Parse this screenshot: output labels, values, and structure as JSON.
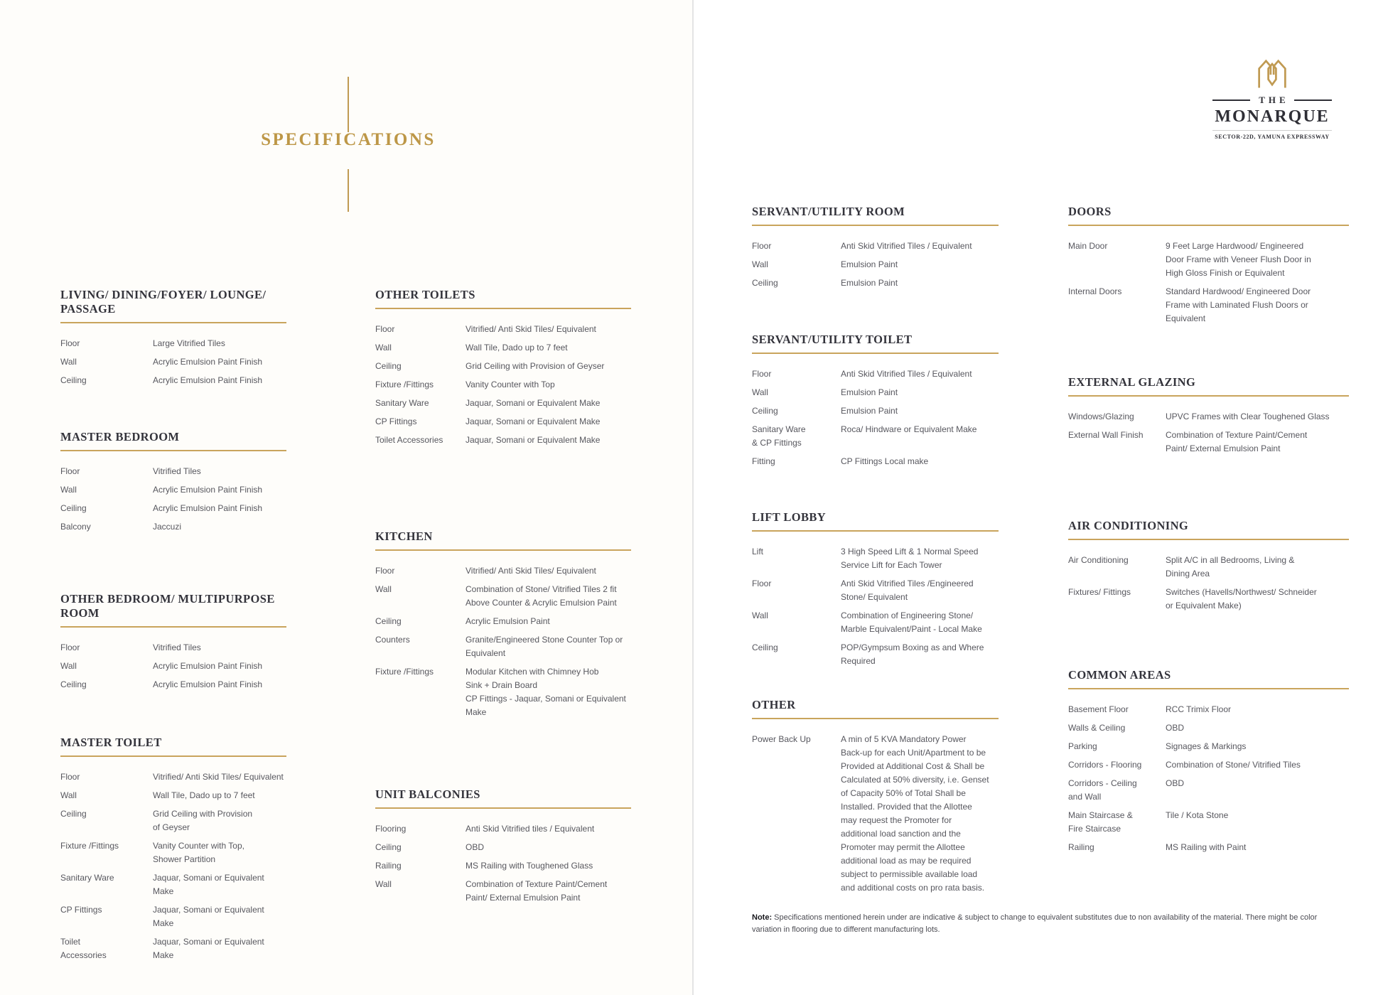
{
  "page": {
    "title": "SPECIFICATIONS",
    "note_label": "Note:",
    "note_text": " Specifications mentioned herein under are indicative & subject to change to equivalent substitutes due to non availability of the material. There might be color variation in flooring due to different manufacturing lots."
  },
  "logo": {
    "monogram_icon": "monarque-monogram",
    "the": "THE",
    "name": "MONARQUE",
    "tagline": "SECTOR-22D, YAMUNA EXPRESSWAY"
  },
  "colors": {
    "gold": "#c09a52",
    "gold_underline": "#c9a45c",
    "heading_dark": "#33333b",
    "body_gray": "#57575e"
  },
  "columns": [
    {
      "sections": [
        {
          "title": "LIVING/ DINING/FOYER/ LOUNGE/ PASSAGE",
          "rows": [
            {
              "label": "Floor",
              "value": "Large Vitrified Tiles"
            },
            {
              "label": "Wall",
              "value": "Acrylic Emulsion Paint Finish"
            },
            {
              "label": "Ceiling",
              "value": "Acrylic Emulsion Paint Finish"
            }
          ]
        },
        {
          "title": "MASTER BEDROOM",
          "rows": [
            {
              "label": "Floor",
              "value": "Vitrified Tiles"
            },
            {
              "label": "Wall",
              "value": "Acrylic Emulsion Paint Finish"
            },
            {
              "label": "Ceiling",
              "value": "Acrylic Emulsion Paint Finish"
            },
            {
              "label": "Balcony",
              "value": "Jaccuzi"
            }
          ]
        },
        {
          "title": "OTHER BEDROOM/ MULTIPURPOSE ROOM",
          "rows": [
            {
              "label": "Floor",
              "value": "Vitrified Tiles"
            },
            {
              "label": "Wall",
              "value": "Acrylic Emulsion Paint Finish"
            },
            {
              "label": "Ceiling",
              "value": "Acrylic Emulsion Paint Finish"
            }
          ]
        },
        {
          "title": "MASTER TOILET",
          "rows": [
            {
              "label": "Floor",
              "value": "Vitrified/ Anti Skid Tiles/ Equivalent"
            },
            {
              "label": "Wall",
              "value": "Wall Tile, Dado up to 7 feet"
            },
            {
              "label": "Ceiling",
              "value": "Grid Ceiling with Provision\nof Geyser"
            },
            {
              "label": "Fixture /Fittings",
              "value": "Vanity Counter with Top,\nShower Partition"
            },
            {
              "label": "Sanitary Ware",
              "value": "Jaquar, Somani or Equivalent Make"
            },
            {
              "label": "CP Fittings",
              "value": "Jaquar, Somani or Equivalent Make"
            },
            {
              "label": "Toilet\nAccessories",
              "value": "Jaquar, Somani or Equivalent Make"
            }
          ]
        }
      ]
    },
    {
      "sections": [
        {
          "title": "OTHER TOILETS",
          "rows": [
            {
              "label": "Floor",
              "value": "Vitrified/ Anti Skid Tiles/ Equivalent"
            },
            {
              "label": "Wall",
              "value": "Wall Tile, Dado up to 7 feet"
            },
            {
              "label": "Ceiling",
              "value": "Grid Ceiling with Provision of Geyser"
            },
            {
              "label": "Fixture /Fittings",
              "value": "Vanity Counter with Top"
            },
            {
              "label": "Sanitary Ware",
              "value": "Jaquar, Somani or Equivalent Make"
            },
            {
              "label": "CP Fittings",
              "value": "Jaquar, Somani or Equivalent Make"
            },
            {
              "label": "Toilet Accessories",
              "value": "Jaquar, Somani or Equivalent Make"
            }
          ]
        },
        {
          "title": "KITCHEN",
          "rows": [
            {
              "label": "Floor",
              "value": "Vitrified/ Anti Skid Tiles/ Equivalent"
            },
            {
              "label": "Wall",
              "value": "Combination of Stone/ Vitrified Tiles 2 fit\nAbove Counter & Acrylic Emulsion Paint"
            },
            {
              "label": "Ceiling",
              "value": "Acrylic Emulsion Paint"
            },
            {
              "label": "Counters",
              "value": "Granite/Engineered Stone Counter Top or\nEquivalent"
            },
            {
              "label": "Fixture /Fittings",
              "value": "Modular Kitchen with Chimney Hob\nSink + Drain Board\nCP Fittings - Jaquar, Somani or Equivalent\nMake"
            }
          ]
        },
        {
          "title": "UNIT BALCONIES",
          "rows": [
            {
              "label": "Flooring",
              "value": "Anti Skid Vitrified tiles / Equivalent"
            },
            {
              "label": "Ceiling",
              "value": "OBD"
            },
            {
              "label": "Railing",
              "value": "MS Railing with Toughened Glass"
            },
            {
              "label": "Wall",
              "value": "Combination of Texture Paint/Cement\nPaint/ External Emulsion Paint"
            }
          ]
        }
      ]
    },
    {
      "sections": [
        {
          "title": "SERVANT/UTILITY ROOM",
          "rows": [
            {
              "label": "Floor",
              "value": "Anti Skid Vitrified Tiles / Equivalent"
            },
            {
              "label": "Wall",
              "value": "Emulsion Paint"
            },
            {
              "label": "Ceiling",
              "value": "Emulsion Paint"
            }
          ]
        },
        {
          "title": "SERVANT/UTILITY TOILET",
          "rows": [
            {
              "label": "Floor",
              "value": "Anti Skid Vitrified Tiles / Equivalent"
            },
            {
              "label": "Wall",
              "value": "Emulsion Paint"
            },
            {
              "label": "Ceiling",
              "value": "Emulsion Paint"
            },
            {
              "label": "Sanitary Ware\n& CP Fittings",
              "value": "Roca/ Hindware or Equivalent Make"
            },
            {
              "label": "Fitting",
              "value": "CP Fittings Local make"
            }
          ]
        },
        {
          "title": "LIFT LOBBY",
          "rows": [
            {
              "label": "Lift",
              "value": "3 High Speed Lift & 1 Normal Speed\nService Lift for Each Tower"
            },
            {
              "label": "Floor",
              "value": "Anti Skid Vitrified Tiles /Engineered\nStone/ Equivalent"
            },
            {
              "label": "Wall",
              "value": "Combination of Engineering Stone/\nMarble Equivalent/Paint - Local Make"
            },
            {
              "label": "Ceiling",
              "value": "POP/Gympsum Boxing as and Where\nRequired"
            }
          ]
        },
        {
          "title": "OTHER",
          "rows": [
            {
              "label": "Power Back Up",
              "value": "A min of 5 KVA Mandatory Power\nBack-up for each Unit/Apartment to be\nProvided at Additional Cost & Shall be\nCalculated at 50% diversity, i.e. Genset\nof Capacity 50% of Total Shall be\nInstalled. Provided that the Allottee\nmay request the Promoter for\nadditional load sanction and the\nPromoter may permit the Allottee\nadditional load as may be required\nsubject to permissible available load\nand additional costs on pro rata basis."
            }
          ]
        }
      ]
    },
    {
      "sections": [
        {
          "title": "DOORS",
          "rows": [
            {
              "label": "Main Door",
              "value": "9 Feet Large Hardwood/ Engineered\nDoor Frame with Veneer Flush Door in\nHigh Gloss Finish or Equivalent"
            },
            {
              "label": "Internal Doors",
              "value": "Standard Hardwood/ Engineered Door\nFrame with Laminated Flush Doors or\nEquivalent"
            }
          ]
        },
        {
          "title": "EXTERNAL GLAZING",
          "rows": [
            {
              "label": "Windows/Glazing",
              "value": "UPVC Frames with Clear Toughened Glass"
            },
            {
              "label": "External Wall Finish",
              "value": "Combination of Texture Paint/Cement\nPaint/ External Emulsion Paint"
            }
          ]
        },
        {
          "title": "AIR CONDITIONING",
          "rows": [
            {
              "label": "Air Conditioning",
              "value": "Split A/C in all Bedrooms, Living &\nDining Area"
            },
            {
              "label": "Fixtures/ Fittings",
              "value": "Switches (Havells/Northwest/ Schneider\nor Equivalent Make)"
            }
          ]
        },
        {
          "title": "COMMON AREAS",
          "rows": [
            {
              "label": "Basement Floor",
              "value": "RCC Trimix Floor"
            },
            {
              "label": "Walls & Ceiling",
              "value": "OBD"
            },
            {
              "label": "Parking",
              "value": "Signages & Markings"
            },
            {
              "label": "Corridors - Flooring",
              "value": "Combination of Stone/ Vitrified Tiles"
            },
            {
              "label": "Corridors - Ceiling\nand Wall",
              "value": "OBD"
            },
            {
              "label": "Main Staircase &\nFire Staircase",
              "value": "Tile / Kota Stone"
            },
            {
              "label": "Railing",
              "value": "MS Railing with Paint"
            }
          ]
        }
      ]
    }
  ]
}
